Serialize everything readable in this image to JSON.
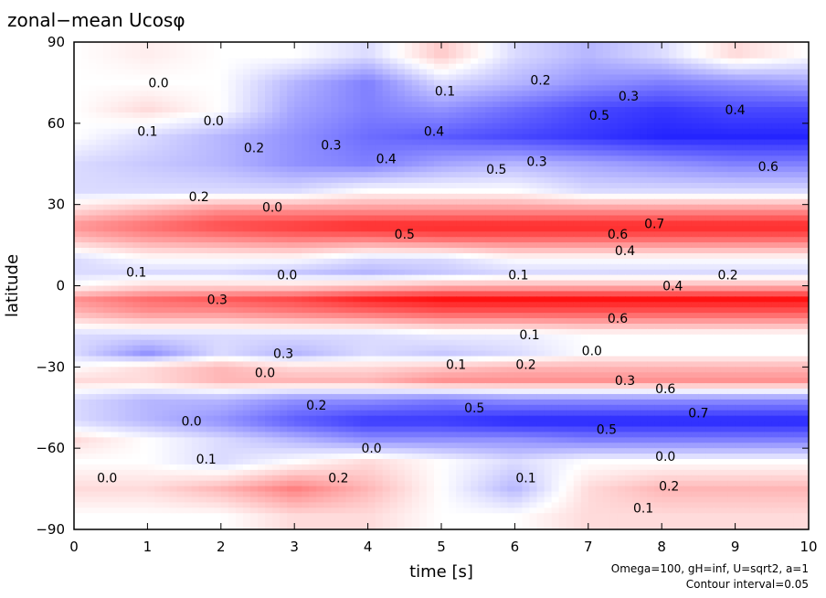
{
  "chart_data": {
    "type": "heatmap",
    "title": "zonal−mean Ucosφ",
    "xlabel": "time [s]",
    "ylabel": "latitude",
    "xlim": [
      0,
      10
    ],
    "ylim": [
      -90,
      90
    ],
    "xticks": [
      "0",
      "1",
      "2",
      "3",
      "4",
      "5",
      "6",
      "7",
      "8",
      "9",
      "10"
    ],
    "yticks": [
      "90",
      "60",
      "30",
      "0",
      "−30",
      "−60",
      "−90"
    ],
    "notes": [
      "Omega=100, gH=inf, U=sqrt2, a=1",
      "Contour interval=0.05"
    ],
    "colormap": {
      "negative": "#0000ff",
      "zero": "#ffffff",
      "positive": "#ff0000"
    },
    "contour_interval": 0.05,
    "value_range": [
      -0.7,
      0.7
    ],
    "times": [
      0,
      1,
      2,
      3,
      4,
      5,
      6,
      7,
      8,
      9,
      10
    ],
    "latitudes": [
      85,
      75,
      65,
      55,
      45,
      35,
      28,
      22,
      18,
      10,
      5,
      0,
      -5,
      -10,
      -18,
      -25,
      -30,
      -35,
      -42,
      -50,
      -57,
      -65,
      -75,
      -85
    ],
    "values": [
      [
        0.0,
        0.05,
        0.0,
        0.0,
        -0.1,
        0.15,
        -0.1,
        -0.2,
        -0.1,
        0.1,
        0.0
      ],
      [
        0.0,
        0.0,
        0.0,
        -0.2,
        -0.35,
        -0.1,
        -0.2,
        -0.3,
        -0.35,
        -0.3,
        -0.25
      ],
      [
        0.0,
        0.1,
        0.0,
        -0.25,
        -0.35,
        -0.3,
        -0.4,
        -0.5,
        -0.55,
        -0.5,
        -0.5
      ],
      [
        0.0,
        -0.1,
        -0.2,
        -0.3,
        -0.4,
        -0.45,
        -0.5,
        -0.55,
        -0.6,
        -0.6,
        -0.6
      ],
      [
        -0.1,
        -0.15,
        -0.2,
        -0.3,
        -0.35,
        -0.25,
        -0.2,
        -0.25,
        -0.3,
        -0.35,
        -0.35
      ],
      [
        -0.1,
        -0.1,
        -0.1,
        -0.1,
        0.0,
        0.0,
        0.0,
        -0.1,
        -0.1,
        -0.1,
        -0.1
      ],
      [
        0.1,
        0.2,
        0.3,
        0.3,
        0.3,
        0.3,
        0.3,
        0.3,
        0.3,
        0.3,
        0.3
      ],
      [
        0.3,
        0.4,
        0.5,
        0.55,
        0.6,
        0.6,
        0.6,
        0.6,
        0.6,
        0.6,
        0.6
      ],
      [
        0.2,
        0.3,
        0.35,
        0.4,
        0.4,
        0.45,
        0.45,
        0.45,
        0.45,
        0.45,
        0.45
      ],
      [
        -0.1,
        0.0,
        0.0,
        0.0,
        -0.1,
        -0.1,
        0.0,
        0.0,
        0.0,
        0.0,
        0.0
      ],
      [
        -0.1,
        -0.1,
        -0.1,
        -0.15,
        -0.2,
        -0.15,
        -0.1,
        -0.1,
        -0.1,
        -0.1,
        -0.1
      ],
      [
        0.0,
        0.1,
        0.1,
        0.1,
        0.15,
        0.2,
        0.2,
        0.2,
        0.2,
        0.2,
        0.2
      ],
      [
        0.3,
        0.4,
        0.45,
        0.5,
        0.6,
        0.65,
        0.65,
        0.65,
        0.65,
        0.65,
        0.65
      ],
      [
        0.2,
        0.3,
        0.3,
        0.35,
        0.4,
        0.45,
        0.45,
        0.45,
        0.45,
        0.45,
        0.45
      ],
      [
        -0.1,
        -0.1,
        -0.1,
        -0.1,
        -0.1,
        -0.05,
        -0.05,
        0.0,
        0.0,
        0.0,
        0.0
      ],
      [
        -0.1,
        -0.3,
        -0.1,
        -0.2,
        -0.1,
        -0.15,
        -0.1,
        0.0,
        0.0,
        0.0,
        0.0
      ],
      [
        0.0,
        0.1,
        0.2,
        0.1,
        0.1,
        0.15,
        0.2,
        0.2,
        0.2,
        0.2,
        0.2
      ],
      [
        0.1,
        0.1,
        0.2,
        0.2,
        0.2,
        0.3,
        0.3,
        0.3,
        0.3,
        0.3,
        0.3
      ],
      [
        -0.1,
        -0.2,
        -0.2,
        -0.3,
        -0.3,
        -0.35,
        -0.3,
        -0.3,
        -0.3,
        -0.3,
        -0.3
      ],
      [
        -0.1,
        -0.2,
        -0.3,
        -0.45,
        -0.55,
        -0.55,
        -0.6,
        -0.6,
        -0.6,
        -0.6,
        -0.6
      ],
      [
        0.1,
        0.0,
        -0.1,
        -0.2,
        -0.3,
        -0.3,
        -0.3,
        -0.35,
        -0.35,
        -0.35,
        -0.35
      ],
      [
        0.0,
        0.0,
        -0.1,
        0.0,
        0.1,
        0.0,
        -0.1,
        0.0,
        0.0,
        0.0,
        0.0
      ],
      [
        0.1,
        0.1,
        0.2,
        0.35,
        0.2,
        0.0,
        -0.2,
        0.1,
        0.2,
        0.2,
        0.2
      ],
      [
        0.0,
        0.0,
        0.0,
        0.1,
        0.1,
        0.0,
        0.0,
        0.1,
        0.1,
        0.1,
        0.1
      ]
    ],
    "contour_labels": [
      {
        "text": "0.0",
        "x": 1.15,
        "y": 75
      },
      {
        "text": "0.1",
        "x": 5.05,
        "y": 72
      },
      {
        "text": "0.2",
        "x": 6.35,
        "y": 76
      },
      {
        "text": "0.3",
        "x": 7.55,
        "y": 70
      },
      {
        "text": "0.4",
        "x": 9.0,
        "y": 65
      },
      {
        "text": "0.5",
        "x": 7.15,
        "y": 63
      },
      {
        "text": "0.0",
        "x": 1.9,
        "y": 61
      },
      {
        "text": "0.1",
        "x": 1.0,
        "y": 57
      },
      {
        "text": "0.4",
        "x": 4.9,
        "y": 57
      },
      {
        "text": "0.2",
        "x": 2.45,
        "y": 51
      },
      {
        "text": "0.3",
        "x": 3.5,
        "y": 52
      },
      {
        "text": "0.4",
        "x": 4.25,
        "y": 47
      },
      {
        "text": "0.3",
        "x": 6.3,
        "y": 46
      },
      {
        "text": "0.5",
        "x": 5.75,
        "y": 43
      },
      {
        "text": "0.6",
        "x": 9.45,
        "y": 44
      },
      {
        "text": "0.2",
        "x": 1.7,
        "y": 33
      },
      {
        "text": "0.0",
        "x": 2.7,
        "y": 29
      },
      {
        "text": "0.5",
        "x": 4.5,
        "y": 19
      },
      {
        "text": "0.6",
        "x": 7.4,
        "y": 19
      },
      {
        "text": "0.7",
        "x": 7.9,
        "y": 23
      },
      {
        "text": "0.4",
        "x": 7.5,
        "y": 13
      },
      {
        "text": "0.1",
        "x": 0.85,
        "y": 5
      },
      {
        "text": "0.0",
        "x": 2.9,
        "y": 4
      },
      {
        "text": "0.1",
        "x": 6.05,
        "y": 4
      },
      {
        "text": "0.2",
        "x": 8.9,
        "y": 4
      },
      {
        "text": "0.3",
        "x": 1.95,
        "y": -5
      },
      {
        "text": "0.4",
        "x": 8.15,
        "y": 0
      },
      {
        "text": "0.6",
        "x": 7.4,
        "y": -12
      },
      {
        "text": "0.1",
        "x": 6.2,
        "y": -18
      },
      {
        "text": "0.0",
        "x": 7.05,
        "y": -24
      },
      {
        "text": "0.1",
        "x": 5.2,
        "y": -29
      },
      {
        "text": "0.2",
        "x": 6.15,
        "y": -29
      },
      {
        "text": "0.3",
        "x": 2.85,
        "y": -25
      },
      {
        "text": "0.0",
        "x": 2.6,
        "y": -32
      },
      {
        "text": "0.3",
        "x": 7.5,
        "y": -35
      },
      {
        "text": "0.6",
        "x": 8.05,
        "y": -38
      },
      {
        "text": "0.2",
        "x": 3.3,
        "y": -44
      },
      {
        "text": "0.5",
        "x": 5.45,
        "y": -45
      },
      {
        "text": "0.7",
        "x": 8.5,
        "y": -47
      },
      {
        "text": "0.0",
        "x": 1.6,
        "y": -50
      },
      {
        "text": "0.5",
        "x": 7.25,
        "y": -53
      },
      {
        "text": "0.0",
        "x": 4.05,
        "y": -60
      },
      {
        "text": "0.1",
        "x": 1.8,
        "y": -64
      },
      {
        "text": "0.0",
        "x": 8.05,
        "y": -63
      },
      {
        "text": "0.0",
        "x": 0.45,
        "y": -71
      },
      {
        "text": "0.2",
        "x": 3.6,
        "y": -71
      },
      {
        "text": "0.1",
        "x": 6.15,
        "y": -71
      },
      {
        "text": "0.2",
        "x": 8.1,
        "y": -74
      },
      {
        "text": "0.1",
        "x": 7.75,
        "y": -82
      }
    ]
  }
}
